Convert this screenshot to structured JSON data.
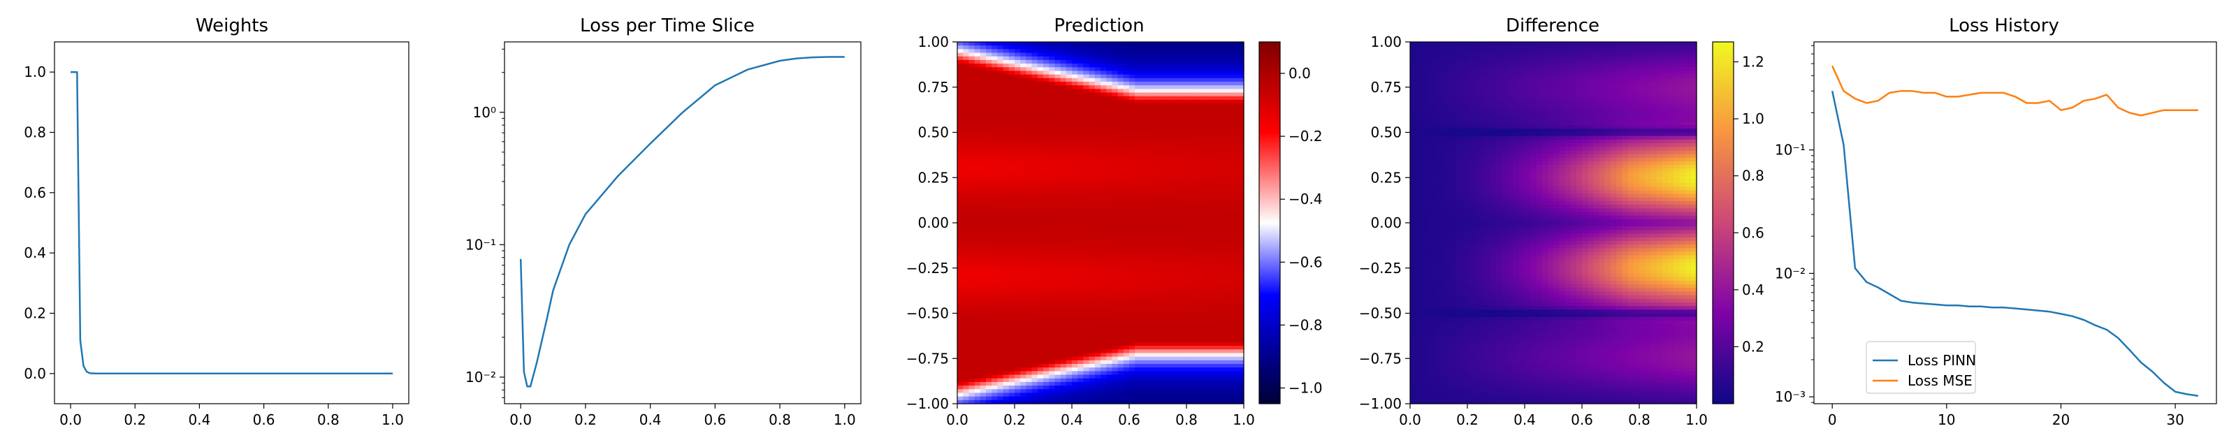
{
  "chart_data": [
    {
      "type": "line",
      "title": "Weights",
      "xlim": [
        -0.05,
        1.05
      ],
      "ylim": [
        -0.1,
        1.1
      ],
      "yscale": "linear",
      "xticks": [
        0.0,
        0.2,
        0.4,
        0.6,
        0.8,
        1.0
      ],
      "xtick_labels": [
        "0.0",
        "0.2",
        "0.4",
        "0.6",
        "0.8",
        "1.0"
      ],
      "yticks": [
        0.0,
        0.2,
        0.4,
        0.6,
        0.8,
        1.0
      ],
      "ytick_labels": [
        "0.0",
        "0.2",
        "0.4",
        "0.6",
        "0.8",
        "1.0"
      ],
      "series": [
        {
          "color": "#1f77b4",
          "x": [
            0.0,
            0.01,
            0.02,
            0.03,
            0.04,
            0.05,
            0.06,
            0.08,
            0.1,
            0.2,
            0.4,
            0.6,
            0.8,
            1.0
          ],
          "y": [
            1.0,
            1.0,
            1.0,
            0.11,
            0.025,
            0.006,
            0.001,
            0.0,
            0.0,
            0.0,
            0.0,
            0.0,
            0.0,
            0.0
          ]
        }
      ]
    },
    {
      "type": "line",
      "title": "Loss per Time Slice",
      "xlim": [
        -0.05,
        1.05
      ],
      "ylim": [
        0.0063,
        3.4
      ],
      "yscale": "log",
      "xticks": [
        0.0,
        0.2,
        0.4,
        0.6,
        0.8,
        1.0
      ],
      "xtick_labels": [
        "0.0",
        "0.2",
        "0.4",
        "0.6",
        "0.8",
        "1.0"
      ],
      "yticks": [
        0.01,
        0.1,
        1.0
      ],
      "ytick_labels": [
        "10⁻²",
        "10⁻¹",
        "10⁰"
      ],
      "series": [
        {
          "color": "#1f77b4",
          "x": [
            0.0,
            0.01,
            0.02,
            0.03,
            0.05,
            0.08,
            0.1,
            0.15,
            0.2,
            0.3,
            0.4,
            0.5,
            0.6,
            0.7,
            0.8,
            0.85,
            0.9,
            0.95,
            1.0
          ],
          "y": [
            0.078,
            0.011,
            0.0085,
            0.0085,
            0.013,
            0.027,
            0.045,
            0.1,
            0.17,
            0.33,
            0.58,
            1.0,
            1.6,
            2.1,
            2.45,
            2.55,
            2.6,
            2.62,
            2.62
          ]
        }
      ]
    },
    {
      "type": "heatmap",
      "title": "Prediction",
      "xlim": [
        0.0,
        1.0
      ],
      "ylim": [
        -1.0,
        1.0
      ],
      "xticks": [
        0.0,
        0.2,
        0.4,
        0.6,
        0.8,
        1.0
      ],
      "xtick_labels": [
        "0.0",
        "0.2",
        "0.4",
        "0.6",
        "0.8",
        "1.0"
      ],
      "yticks": [
        -1.0,
        -0.75,
        -0.5,
        -0.25,
        0.0,
        0.25,
        0.5,
        0.75,
        1.0
      ],
      "ytick_labels": [
        "−1.00",
        "−0.75",
        "−0.50",
        "−0.25",
        "0.00",
        "0.25",
        "0.50",
        "0.75",
        "1.00"
      ],
      "colormap": "seismic",
      "colorbar": {
        "range": [
          -1.05,
          0.1
        ],
        "ticks": [
          0.0,
          -0.2,
          -0.4,
          -0.6,
          -0.8,
          -1.0
        ],
        "tick_labels": [
          "0.0",
          "−0.2",
          "−0.4",
          "−0.6",
          "−0.8",
          "−1.0"
        ]
      }
    },
    {
      "type": "heatmap",
      "title": "Difference",
      "xlim": [
        0.0,
        1.0
      ],
      "ylim": [
        -1.0,
        1.0
      ],
      "xticks": [
        0.0,
        0.2,
        0.4,
        0.6,
        0.8,
        1.0
      ],
      "xtick_labels": [
        "0.0",
        "0.2",
        "0.4",
        "0.6",
        "0.8",
        "1.0"
      ],
      "yticks": [
        -1.0,
        -0.75,
        -0.5,
        -0.25,
        0.0,
        0.25,
        0.5,
        0.75,
        1.0
      ],
      "ytick_labels": [
        "−1.00",
        "−0.75",
        "−0.50",
        "−0.25",
        "0.00",
        "0.25",
        "0.50",
        "0.75",
        "1.00"
      ],
      "colormap": "plasma",
      "colorbar": {
        "range": [
          0.0,
          1.27
        ],
        "ticks": [
          0.2,
          0.4,
          0.6,
          0.8,
          1.0,
          1.2
        ],
        "tick_labels": [
          "0.2",
          "0.4",
          "0.6",
          "0.8",
          "1.0",
          "1.2"
        ]
      }
    },
    {
      "type": "line",
      "title": "Loss History",
      "xlim": [
        -1.6,
        33.6
      ],
      "ylim": [
        0.00088,
        0.75
      ],
      "yscale": "log",
      "xticks": [
        0,
        10,
        20,
        30
      ],
      "xtick_labels": [
        "0",
        "10",
        "20",
        "30"
      ],
      "yticks": [
        0.001,
        0.01,
        0.1
      ],
      "ytick_labels": [
        "10⁻³",
        "10⁻²",
        "10⁻¹"
      ],
      "legend": "lower-left",
      "series": [
        {
          "name": "Loss PINN",
          "color": "#1f77b4",
          "x": [
            0,
            1,
            2,
            3,
            4,
            5,
            6,
            7,
            8,
            9,
            10,
            11,
            12,
            13,
            14,
            15,
            16,
            17,
            18,
            19,
            20,
            21,
            22,
            23,
            24,
            25,
            26,
            27,
            28,
            29,
            30,
            31,
            32
          ],
          "y": [
            0.3,
            0.11,
            0.011,
            0.0085,
            0.0077,
            0.0068,
            0.006,
            0.0058,
            0.0057,
            0.0056,
            0.0055,
            0.0055,
            0.0054,
            0.0054,
            0.0053,
            0.0053,
            0.0052,
            0.0051,
            0.005,
            0.0049,
            0.0047,
            0.0045,
            0.0042,
            0.0038,
            0.0035,
            0.003,
            0.0024,
            0.0019,
            0.0016,
            0.0013,
            0.0011,
            0.00105,
            0.00102
          ]
        },
        {
          "name": "Loss MSE",
          "color": "#ff7f0e",
          "x": [
            0,
            1,
            2,
            3,
            4,
            5,
            6,
            7,
            8,
            9,
            10,
            11,
            12,
            13,
            14,
            15,
            16,
            17,
            18,
            19,
            20,
            21,
            22,
            23,
            24,
            25,
            26,
            27,
            28,
            29,
            30,
            31,
            32
          ],
          "y": [
            0.48,
            0.3,
            0.26,
            0.24,
            0.25,
            0.29,
            0.3,
            0.3,
            0.29,
            0.29,
            0.27,
            0.27,
            0.28,
            0.29,
            0.29,
            0.29,
            0.27,
            0.24,
            0.24,
            0.25,
            0.21,
            0.22,
            0.25,
            0.26,
            0.28,
            0.22,
            0.2,
            0.19,
            0.2,
            0.21,
            0.21,
            0.21,
            0.21
          ]
        }
      ]
    }
  ]
}
